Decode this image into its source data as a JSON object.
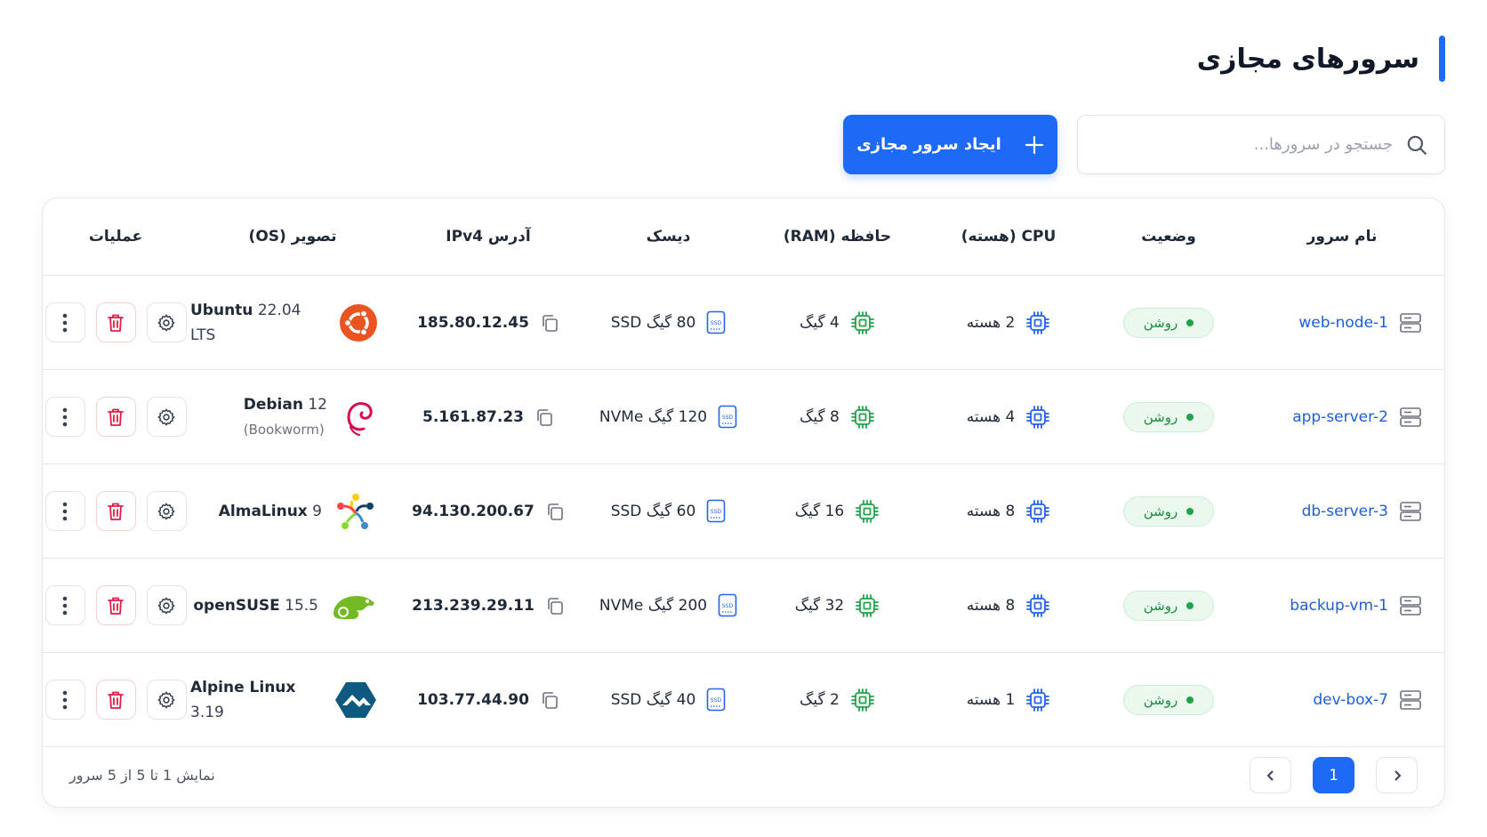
{
  "header": {
    "title": "سرورهای مجازی"
  },
  "toolbar": {
    "search_placeholder": "جستجو در سرورها...",
    "create_button": "ایجاد سرور مجازی"
  },
  "table": {
    "columns": [
      "نام سرور",
      "وضعیت",
      "CPU (هسته)",
      "حافظه (RAM)",
      "دیسک",
      "آدرس IPv4",
      "تصویر (OS)",
      "عملیات"
    ],
    "rows": [
      {
        "name": "web-node-1",
        "status": "روشن",
        "cpu": "2 هسته",
        "ram": "4 گیگ",
        "disk": "80 گیگ SSD",
        "ipv4": "185.80.12.45",
        "os": "Ubuntu",
        "os_version": "22.04 LTS"
      },
      {
        "name": "app-server-2",
        "status": "روشن",
        "cpu": "4 هسته",
        "ram": "8 گیگ",
        "disk": "120 گیگ NVMe",
        "ipv4": "5.161.87.23",
        "os": "Debian",
        "os_version": "12",
        "os_codename": "(Bookworm)"
      },
      {
        "name": "db-server-3",
        "status": "روشن",
        "cpu": "8 هسته",
        "ram": "16 گیگ",
        "disk": "60 گیگ SSD",
        "ipv4": "94.130.200.67",
        "os": "AlmaLinux",
        "os_version": "9"
      },
      {
        "name": "backup-vm-1",
        "status": "روشن",
        "cpu": "8 هسته",
        "ram": "32 گیگ",
        "disk": "200 گیگ NVMe",
        "ipv4": "213.239.29.11",
        "os": "openSUSE",
        "os_version": "15.5"
      },
      {
        "name": "dev-box-7",
        "status": "روشن",
        "cpu": "1 هسته",
        "ram": "2 گیگ",
        "disk": "40 گیگ SSD",
        "ipv4": "103.77.44.90",
        "os": "Alpine Linux",
        "os_version": "3.19"
      }
    ]
  },
  "pagination": {
    "summary": "نمایش 1 تا 5 از 5 سرور",
    "current": "1"
  }
}
